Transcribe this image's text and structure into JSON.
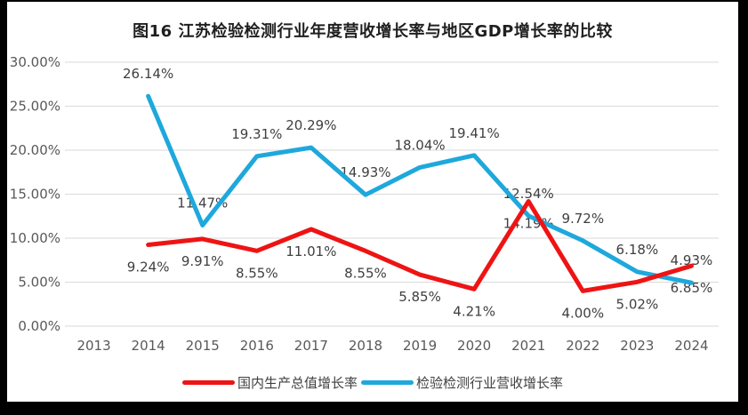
{
  "frame": {
    "background": "#000000",
    "panel_background": "#ffffff"
  },
  "chart_data": {
    "type": "line",
    "title": "图16  江苏检验检测行业年度营收增长率与地区GDP增长率的比较",
    "categories": [
      "2013",
      "2014",
      "2015",
      "2016",
      "2017",
      "2018",
      "2019",
      "2020",
      "2021",
      "2022",
      "2023",
      "2024"
    ],
    "xlabel": "",
    "ylabel": "",
    "ylim": [
      0,
      30
    ],
    "ytick_step": 5,
    "ytick_labels": [
      "0.00%",
      "5.00%",
      "10.00%",
      "15.00%",
      "20.00%",
      "25.00%",
      "30.00%"
    ],
    "grid": true,
    "legend_position": "bottom",
    "colors": {
      "gdp": "#EE1414",
      "industry": "#1EA8DC",
      "gridline": "#D9D9D9"
    },
    "series": [
      {
        "name": "国内生产总值增长率",
        "color": "#EE1414",
        "label_position": "below",
        "values": [
          null,
          9.24,
          9.91,
          8.55,
          11.01,
          8.55,
          5.85,
          4.21,
          14.19,
          4.0,
          5.02,
          6.85
        ],
        "labels": [
          null,
          "9.24%",
          "9.91%",
          "8.55%",
          "11.01%",
          "8.55%",
          "5.85%",
          "4.21%",
          "14.19%",
          "4.00%",
          "5.02%",
          "6.85%"
        ]
      },
      {
        "name": "检验检测行业营收增长率",
        "color": "#1EA8DC",
        "label_position": "above",
        "values": [
          null,
          26.14,
          11.47,
          19.31,
          20.29,
          14.93,
          18.04,
          19.41,
          12.54,
          9.72,
          6.18,
          4.93
        ],
        "labels": [
          null,
          "26.14%",
          "11.47%",
          "19.31%",
          "20.29%",
          "14.93%",
          "18.04%",
          "19.41%",
          "12.54%",
          "9.72%",
          "6.18%",
          "4.93%"
        ]
      }
    ]
  }
}
